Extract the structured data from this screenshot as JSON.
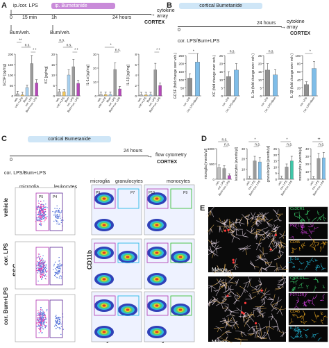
{
  "panelA": {
    "label": "A",
    "step1": "ip./cor. LPS",
    "step2": "ip. Bumetanide",
    "t0": "0",
    "t15": "15 min",
    "t1h": "1h",
    "t24": "24 hours",
    "treat1": "Bum/veh.",
    "treat2": "Bum/veh.",
    "out1": "cytokine",
    "out2": "array",
    "region": "CORTEX",
    "colors": {
      "veh": "#bfbfbf",
      "vehLPS": "#f2c75c",
      "bum": "#a7d0ef",
      "lps": "#9a9a9a",
      "bumLPS": "#b548b9"
    },
    "charts": [
      {
        "ylabel": "GCSF [pg/mg]",
        "ymax": 200,
        "ticks": [
          "0",
          "50",
          "100",
          "150",
          "200"
        ],
        "values": [
          10,
          5,
          40,
          155,
          62
        ],
        "sig_top": "* *",
        "sig_mid": "n.s.",
        "sig_low": "**"
      },
      {
        "ylabel": "KC [pg/mg]",
        "ymax": 20,
        "ticks": [
          "0",
          "5",
          "10",
          "15",
          "20"
        ],
        "values": [
          2,
          2,
          10,
          14,
          6
        ],
        "sig_top": "* *",
        "sig_mid": "n.s.",
        "sig_low": "n.s."
      },
      {
        "ylabel": "IL-1α [pg/mg]",
        "ymax": 30,
        "ticks": [
          "0",
          "10",
          "20",
          "30"
        ],
        "values": [
          1,
          1,
          1,
          19,
          5
        ],
        "sig_top": "n.s.",
        "sig_mid": "*",
        "sig_low": ""
      },
      {
        "ylabel": "IL-1β [pg/mg]",
        "ymax": 8,
        "ticks": [
          "0",
          "2",
          "4",
          "6",
          "8"
        ],
        "values": [
          0.2,
          0.2,
          0.2,
          5,
          2
        ],
        "sig_top": "* *",
        "sig_mid": "",
        "sig_low": ""
      }
    ],
    "xlabels": [
      "veh.",
      "veh.+LPS",
      "Bum",
      "cor. LPS",
      "Bum+cor. LPS"
    ]
  },
  "panelB": {
    "label": "B",
    "title": "cortical Bumetanide",
    "t0": "0",
    "t24": "24 hours",
    "treat": "cor. LPS/Bum+LPS",
    "out1": "cytokine",
    "out2": "array",
    "region": "CORTEX",
    "charts": [
      {
        "ylabel": "GCSF (fold change over veh.)",
        "ymax": 250,
        "ticks": [
          "0",
          "50",
          "100",
          "150",
          "200",
          "250"
        ],
        "values": [
          110,
          210
        ],
        "sig": "*"
      },
      {
        "ylabel": "KC (fold change over veh.)",
        "ymax": 25,
        "ticks": [
          "0",
          "5",
          "10",
          "15",
          "20",
          "25"
        ],
        "values": [
          12,
          16
        ],
        "sig": "n.s."
      },
      {
        "ylabel": "IL-1α (fold change over veh.)",
        "ymax": 25,
        "ticks": [
          "0",
          "5",
          "10",
          "15",
          "20",
          "25"
        ],
        "values": [
          16,
          13
        ],
        "sig": "n.s."
      },
      {
        "ylabel": "IL-1β (fold change over veh.)",
        "ymax": 100,
        "ticks": [
          "0",
          "20",
          "40",
          "60",
          "80",
          "100"
        ],
        "values": [
          28,
          68
        ],
        "sig": "*"
      }
    ],
    "xlabels": [
      "cor. LPS",
      "cor. LPS+Bum"
    ]
  },
  "panelC": {
    "label": "C",
    "title": "cortical Bumetanide",
    "t0": "0",
    "t24": "24 hours",
    "treat": "cor. LPS/Bum+LPS",
    "out1": "flow cytometry",
    "region": "CORTEX",
    "row_labels": [
      "vehicle",
      "cor. LPS",
      "cor. Bum+LPS"
    ],
    "gate_microglia": "microglia",
    "gate_leukocytes": "leukocytes",
    "gate_p5": "P5",
    "gate_p4": "P4",
    "col2_microglia": "microglia",
    "col2_granulocytes": "granulocytes",
    "col3_monocytes": "monocytes",
    "gate_p9a": "P9",
    "gate_p7": "P7",
    "gate_p10": "P10",
    "gate_p9b": "P9",
    "axis_ssc": "SSC",
    "axis_cd11b": "CD11b",
    "axis_cd45": "CD45",
    "axis_ly6g": "Ly6G",
    "axis_ly6c": "Ly6C"
  },
  "panelD": {
    "label": "D",
    "charts": [
      {
        "ylabel": "microglia [events/µl]",
        "ymax": 1000,
        "ticks": [
          "0",
          "500",
          "1000"
        ],
        "values": [
          380,
          350,
          120
        ],
        "sig_top": "n.s.",
        "sig_low": "n.s."
      },
      {
        "ylabel": "leukocytes [events/µl]",
        "ymax": 30,
        "ticks": [
          "0",
          "10",
          "20",
          "30"
        ],
        "values": [
          1,
          18,
          17
        ],
        "sig_top": "*",
        "sig_low": "n.s."
      },
      {
        "ylabel": "granulocytes [events/µl]",
        "ymax": 25,
        "ticks": [
          "0",
          "5",
          "10",
          "15",
          "20",
          "25"
        ],
        "values": [
          1,
          10,
          15
        ],
        "sig_top": "*",
        "sig_low": "n.s."
      },
      {
        "ylabel": "monocytes [events/µl]",
        "ymax": 40,
        "ticks": [
          "0",
          "10",
          "20",
          "30",
          "40"
        ],
        "values": [
          1,
          27,
          28
        ],
        "sig_top": "**",
        "sig_low": "n.s."
      }
    ],
    "xlabels": [
      "veh.",
      "cor. LPS",
      "Bum+cor. LPS"
    ]
  },
  "panelE": {
    "label": "E",
    "merge1": "Merge",
    "merge2": "Merge",
    "tiles": [
      "Cx3CR1",
      "P2Y12R",
      "CD45",
      "IL-1α"
    ],
    "tile_colors": [
      "#3ad06b",
      "#c53bd0",
      "#e0a020",
      "#22b8d8"
    ]
  }
}
